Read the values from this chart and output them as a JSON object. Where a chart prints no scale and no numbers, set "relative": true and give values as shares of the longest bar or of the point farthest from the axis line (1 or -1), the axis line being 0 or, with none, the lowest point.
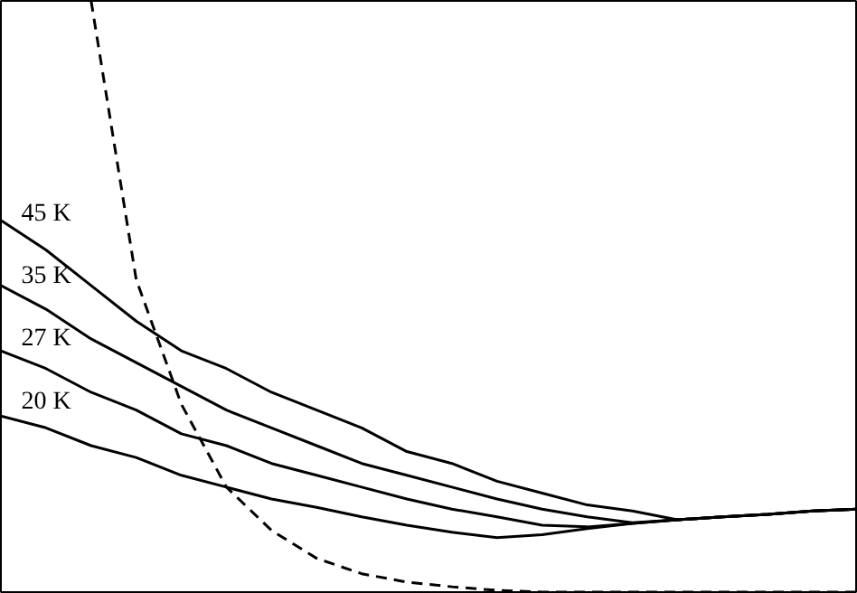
{
  "chart_data": {
    "type": "line",
    "relative": true,
    "categories": [
      null,
      null,
      null,
      null,
      null,
      null,
      null,
      null,
      null,
      null,
      null,
      null,
      null,
      null,
      null,
      null,
      null,
      null,
      null,
      null
    ],
    "series": [
      {
        "name": "45 K",
        "color": "#000000",
        "values": [
          0.63,
          0.58,
          0.52,
          0.46,
          0.41,
          0.38,
          0.34,
          0.31,
          0.28,
          0.24,
          0.22,
          0.19,
          0.17,
          0.15,
          0.14,
          0.125,
          0.13,
          0.134,
          0.14,
          0.143
        ]
      },
      {
        "name": "35 K",
        "color": "#000000",
        "values": [
          0.52,
          0.48,
          0.43,
          0.39,
          0.35,
          0.31,
          0.28,
          0.25,
          0.22,
          0.2,
          0.18,
          0.16,
          0.143,
          0.13,
          0.12,
          0.125,
          0.13,
          0.134,
          0.14,
          0.143
        ]
      },
      {
        "name": "27 K",
        "color": "#000000",
        "values": [
          0.41,
          0.38,
          0.34,
          0.31,
          0.27,
          0.25,
          0.22,
          0.2,
          0.18,
          0.16,
          0.143,
          0.13,
          0.116,
          0.113,
          0.119,
          0.125,
          0.13,
          0.134,
          0.14,
          0.143
        ]
      },
      {
        "name": "20 K",
        "color": "#000000",
        "values": [
          0.3,
          0.28,
          0.25,
          0.23,
          0.2,
          0.18,
          0.16,
          0.146,
          0.13,
          0.116,
          0.104,
          0.095,
          0.1,
          0.11,
          0.119,
          0.125,
          0.13,
          0.134,
          0.14,
          0.143
        ]
      },
      {
        "color": "#000000",
        "line_style": "dashed",
        "values": [
          null,
          null,
          1.0,
          0.53,
          0.32,
          0.18,
          0.107,
          0.06,
          0.034,
          0.02,
          0.012,
          0.006,
          0.003,
          0.003,
          0.003,
          0.003,
          0.003,
          0.003,
          0.003,
          0.003
        ]
      }
    ]
  }
}
